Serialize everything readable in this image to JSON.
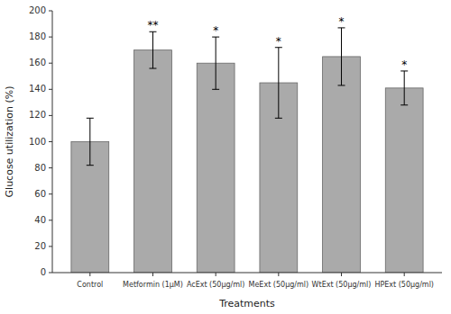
{
  "chart_data": {
    "type": "bar",
    "categories": [
      "Control",
      "Metformin (1μM)",
      "AcExt (50μg/ml)",
      "MeExt (50μg/ml)",
      "WtExt (50μg/ml)",
      "HPExt (50μg/ml)"
    ],
    "values": [
      100,
      170,
      160,
      145,
      165,
      141
    ],
    "errors": [
      18,
      14,
      20,
      27,
      22,
      13
    ],
    "significance": [
      null,
      "**",
      "*",
      "*",
      "*",
      "*"
    ],
    "color": "#aaaaaa",
    "ylabel": "Glucose utilization (%)",
    "xlabel": "Treatments",
    "ylim": [
      0,
      200
    ],
    "yticks": [
      0,
      20,
      40,
      60,
      80,
      100,
      120,
      140,
      160,
      180,
      200
    ],
    "grid": false
  }
}
